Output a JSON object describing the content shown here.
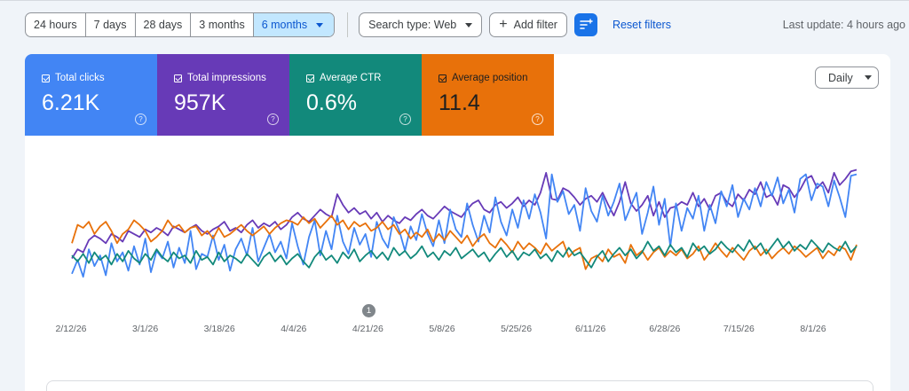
{
  "toolbar": {
    "ranges": [
      {
        "label": "24 hours",
        "selected": false
      },
      {
        "label": "7 days",
        "selected": false
      },
      {
        "label": "28 days",
        "selected": false
      },
      {
        "label": "3 months",
        "selected": false
      },
      {
        "label": "6 months",
        "selected": true
      }
    ],
    "search_type_label": "Search type: Web",
    "add_filter_label": "Add filter",
    "filter_icon": "filter-list-icon",
    "reset_filters_label": "Reset filters",
    "last_update": "Last update: 4 hours ago"
  },
  "metrics": {
    "clicks": {
      "label": "Total clicks",
      "value": "6.21K",
      "color": "#4285f4"
    },
    "impressions": {
      "label": "Total impressions",
      "value": "957K",
      "color": "#673ab7"
    },
    "ctr": {
      "label": "Average CTR",
      "value": "0.6%",
      "color": "#12897b"
    },
    "position": {
      "label": "Average position",
      "value": "11.4",
      "color": "#e8710a"
    }
  },
  "granularity": {
    "label": "Daily"
  },
  "annotation": {
    "label": "1"
  },
  "colors": {
    "accent": "#1a73e8",
    "selected_bg": "#c2e7ff"
  },
  "chart_data": {
    "type": "line",
    "x_tick_labels": [
      "2/12/26",
      "3/1/26",
      "3/18/26",
      "4/4/26",
      "4/21/26",
      "5/8/26",
      "5/25/26",
      "6/11/26",
      "6/28/26",
      "7/15/26",
      "8/1/26"
    ],
    "y_axis_shown": false,
    "grid": false,
    "series": [
      {
        "name": "Total impressions",
        "color": "#673ab7",
        "values": [
          20,
          26,
          24,
          32,
          35,
          33,
          30,
          36,
          34,
          31,
          38,
          36,
          34,
          39,
          37,
          40,
          38,
          35,
          41,
          39,
          37,
          40,
          42,
          38,
          36,
          39,
          41,
          44,
          38,
          40,
          37,
          42,
          45,
          40,
          43,
          41,
          44,
          39,
          42,
          47,
          50,
          46,
          44,
          48,
          52,
          49,
          47,
          62,
          55,
          50,
          53,
          49,
          51,
          46,
          50,
          44,
          48,
          45,
          43,
          47,
          45,
          49,
          52,
          48,
          46,
          50,
          54,
          51,
          49,
          47,
          52,
          56,
          58,
          52,
          50,
          55,
          57,
          53,
          56,
          60,
          54,
          58,
          55,
          63,
          76,
          59,
          58,
          66,
          64,
          60,
          55,
          59,
          61,
          57,
          63,
          55,
          48,
          57,
          70,
          56,
          51,
          55,
          61,
          48,
          57,
          47,
          53,
          54,
          57,
          55,
          63,
          54,
          59,
          52,
          61,
          63,
          57,
          54,
          62,
          58,
          65,
          62,
          70,
          60,
          62,
          55,
          68,
          66,
          60,
          65,
          72,
          74,
          66,
          70,
          63,
          76,
          68,
          72,
          77,
          78
        ]
      },
      {
        "name": "Total clicks",
        "color": "#4285f4",
        "values": [
          10,
          19,
          8,
          26,
          15,
          22,
          9,
          30,
          18,
          24,
          12,
          28,
          16,
          33,
          11,
          25,
          20,
          31,
          14,
          27,
          17,
          38,
          13,
          23,
          21,
          35,
          19,
          29,
          12,
          26,
          33,
          22,
          40,
          18,
          27,
          36,
          24,
          31,
          20,
          43,
          28,
          16,
          34,
          45,
          22,
          38,
          26,
          48,
          31,
          23,
          40,
          29,
          36,
          21,
          44,
          33,
          27,
          47,
          38,
          25,
          41,
          32,
          49,
          36,
          28,
          45,
          30,
          52,
          39,
          34,
          56,
          42,
          31,
          48,
          37,
          60,
          44,
          35,
          52,
          40,
          58,
          46,
          62,
          50,
          33,
          75,
          57,
          64,
          49,
          55,
          38,
          66,
          51,
          44,
          61,
          48,
          57,
          69,
          45,
          54,
          63,
          36,
          50,
          67,
          42,
          59,
          28,
          56,
          38,
          53,
          46,
          61,
          38,
          55,
          43,
          64,
          54,
          68,
          47,
          59,
          52,
          66,
          54,
          70,
          61,
          73,
          56,
          65,
          50,
          72,
          75,
          58,
          69,
          67,
          54,
          71,
          60,
          47,
          74,
          75
        ]
      },
      {
        "name": "Average position",
        "color": "#e8710a",
        "values": [
          30,
          42,
          40,
          44,
          36,
          41,
          44,
          38,
          30,
          36,
          39,
          45,
          42,
          38,
          31,
          34,
          38,
          45,
          40,
          42,
          37,
          40,
          41,
          35,
          38,
          33,
          40,
          34,
          36,
          39,
          42,
          38,
          35,
          38,
          41,
          36,
          40,
          43,
          45,
          44,
          42,
          47,
          43,
          46,
          40,
          44,
          48,
          42,
          45,
          39,
          44,
          41,
          43,
          38,
          40,
          44,
          39,
          42,
          36,
          39,
          33,
          37,
          34,
          39,
          31,
          36,
          32,
          38,
          34,
          30,
          35,
          28,
          33,
          36,
          30,
          27,
          33,
          29,
          24,
          31,
          26,
          30,
          27,
          23,
          30,
          25,
          28,
          31,
          21,
          25,
          27,
          13,
          20,
          22,
          18,
          26,
          21,
          23,
          17,
          29,
          22,
          25,
          19,
          24,
          27,
          21,
          25,
          22,
          26,
          20,
          23,
          28,
          19,
          24,
          30,
          25,
          21,
          27,
          23,
          19,
          25,
          28,
          22,
          26,
          20,
          24,
          27,
          23,
          28,
          25,
          21,
          24,
          27,
          20,
          25,
          22,
          28,
          26,
          19,
          29
        ]
      },
      {
        "name": "Average CTR",
        "color": "#12897b",
        "values": [
          22,
          18,
          23,
          17,
          24,
          19,
          22,
          16,
          23,
          18,
          25,
          20,
          17,
          23,
          19,
          26,
          21,
          18,
          24,
          20,
          22,
          17,
          25,
          19,
          21,
          16,
          24,
          18,
          22,
          20,
          17,
          23,
          19,
          15,
          21,
          24,
          18,
          22,
          16,
          20,
          23,
          18,
          14,
          21,
          25,
          19,
          22,
          17,
          24,
          20,
          26,
          18,
          22,
          25,
          20,
          24,
          19,
          27,
          22,
          25,
          20,
          23,
          28,
          21,
          24,
          19,
          25,
          22,
          27,
          20,
          23,
          26,
          21,
          24,
          18,
          23,
          27,
          21,
          25,
          19,
          24,
          22,
          26,
          20,
          23,
          18,
          25,
          21,
          27,
          22,
          24,
          19,
          14,
          21,
          25,
          18,
          23,
          27,
          22,
          26,
          20,
          24,
          31,
          25,
          28,
          22,
          29,
          24,
          27,
          21,
          30,
          25,
          28,
          23,
          26,
          31,
          27,
          24,
          29,
          25,
          32,
          26,
          30,
          23,
          28,
          33,
          27,
          31,
          25,
          29,
          26,
          32,
          28,
          24,
          30,
          27,
          25,
          31,
          24,
          28
        ]
      }
    ]
  }
}
